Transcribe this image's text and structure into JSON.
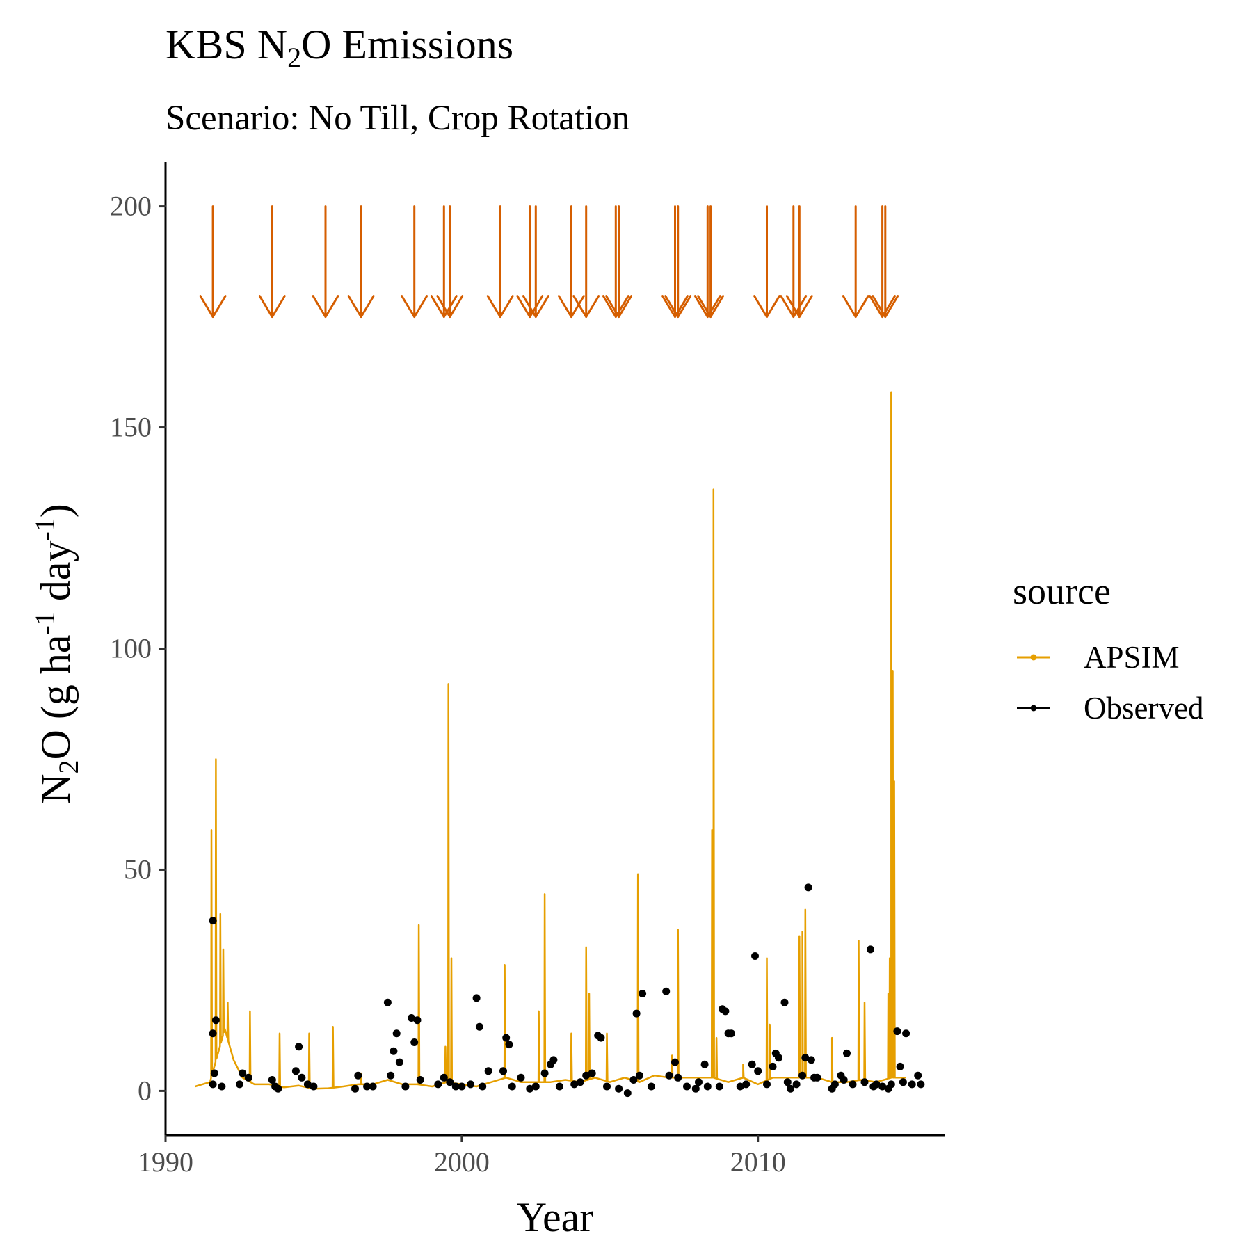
{
  "chart_data": {
    "type": "line",
    "title": {
      "prefix": "KBS N",
      "sub": "2",
      "suffix": "O Emissions"
    },
    "subtitle": "Scenario: No Till, Crop Rotation",
    "xlabel": "Year",
    "ylabel": {
      "n": "N",
      "n_sub": "2",
      "a": "O (g ha",
      "sup1": "-1",
      "b": " day",
      "sup2": "-1",
      "c": ")"
    },
    "xlim": [
      1990,
      2016.3
    ],
    "ylim": [
      -10,
      210
    ],
    "xticks": [
      1990,
      2000,
      2010
    ],
    "xtick_labels": [
      "1990",
      "2000",
      "2010"
    ],
    "yticks": [
      0,
      50,
      100,
      150,
      200
    ],
    "ytick_labels": [
      "0",
      "50",
      "100",
      "150",
      "200"
    ],
    "grid": false,
    "legend": {
      "title": "source",
      "position": "right",
      "entries": [
        {
          "name": "APSIM",
          "color": "#E69F00",
          "marker": "line-point"
        },
        {
          "name": "Observed",
          "color": "#000000",
          "marker": "line-point"
        }
      ]
    },
    "series": [
      {
        "name": "APSIM",
        "color": "#E69F00",
        "baseline": [
          [
            1991.0,
            1.0
          ],
          [
            1991.5,
            2.0
          ],
          [
            1992.0,
            14.0
          ],
          [
            1992.3,
            7.0
          ],
          [
            1992.6,
            3.0
          ],
          [
            1993.0,
            1.5
          ],
          [
            1993.5,
            1.5
          ],
          [
            1994.0,
            0.8
          ],
          [
            1994.5,
            1.2
          ],
          [
            1995.0,
            0.5
          ],
          [
            1995.5,
            0.6
          ],
          [
            1996.0,
            1.0
          ],
          [
            1996.5,
            1.5
          ],
          [
            1997.0,
            1.5
          ],
          [
            1997.5,
            2.5
          ],
          [
            1998.0,
            1.5
          ],
          [
            1998.5,
            1.5
          ],
          [
            1999.0,
            1.0
          ],
          [
            1999.5,
            2.0
          ],
          [
            2000.0,
            1.5
          ],
          [
            2000.5,
            1.0
          ],
          [
            2001.0,
            2.0
          ],
          [
            2001.5,
            3.0
          ],
          [
            2002.0,
            2.0
          ],
          [
            2002.5,
            2.0
          ],
          [
            2003.0,
            2.0
          ],
          [
            2003.5,
            2.5
          ],
          [
            2004.0,
            2.0
          ],
          [
            2004.5,
            3.0
          ],
          [
            2005.0,
            2.0
          ],
          [
            2005.5,
            3.0
          ],
          [
            2006.0,
            2.0
          ],
          [
            2006.5,
            3.5
          ],
          [
            2007.0,
            3.0
          ],
          [
            2007.5,
            3.0
          ],
          [
            2008.0,
            3.0
          ],
          [
            2008.5,
            3.0
          ],
          [
            2009.0,
            2.0
          ],
          [
            2009.5,
            3.0
          ],
          [
            2010.0,
            1.5
          ],
          [
            2010.5,
            3.0
          ],
          [
            2011.0,
            3.0
          ],
          [
            2011.5,
            3.0
          ],
          [
            2012.0,
            3.0
          ],
          [
            2012.5,
            2.0
          ],
          [
            2013.0,
            2.0
          ],
          [
            2013.5,
            2.5
          ],
          [
            2014.0,
            2.0
          ],
          [
            2014.5,
            3.0
          ],
          [
            2015.0,
            3.0
          ]
        ],
        "peaks": [
          [
            1991.55,
            59
          ],
          [
            1991.7,
            75
          ],
          [
            1991.85,
            40
          ],
          [
            1991.95,
            32
          ],
          [
            1992.1,
            20
          ],
          [
            1992.85,
            18
          ],
          [
            1993.85,
            13
          ],
          [
            1994.85,
            13
          ],
          [
            1995.65,
            14.5
          ],
          [
            1996.6,
            4
          ],
          [
            1998.55,
            37.5
          ],
          [
            1999.45,
            10
          ],
          [
            1999.55,
            92
          ],
          [
            1999.65,
            30
          ],
          [
            2001.45,
            28.5
          ],
          [
            2002.6,
            18
          ],
          [
            2002.8,
            44.5
          ],
          [
            2003.7,
            13
          ],
          [
            2004.2,
            32.5
          ],
          [
            2004.3,
            22
          ],
          [
            2004.9,
            13
          ],
          [
            2005.95,
            49
          ],
          [
            2007.1,
            8
          ],
          [
            2007.3,
            36.5
          ],
          [
            2008.45,
            59
          ],
          [
            2008.5,
            136
          ],
          [
            2008.6,
            12
          ],
          [
            2009.5,
            6
          ],
          [
            2010.3,
            30
          ],
          [
            2010.4,
            15
          ],
          [
            2011.4,
            35
          ],
          [
            2011.5,
            36
          ],
          [
            2011.6,
            41
          ],
          [
            2012.5,
            12
          ],
          [
            2013.4,
            34
          ],
          [
            2013.6,
            20
          ],
          [
            2014.4,
            22
          ],
          [
            2014.45,
            30
          ],
          [
            2014.5,
            158
          ],
          [
            2014.55,
            95
          ],
          [
            2014.6,
            70
          ]
        ]
      },
      {
        "name": "Observed",
        "color": "#000000",
        "points": [
          [
            1991.6,
            38.5
          ],
          [
            1991.6,
            13
          ],
          [
            1991.7,
            16
          ],
          [
            1991.65,
            4
          ],
          [
            1991.6,
            1.5
          ],
          [
            1991.9,
            1
          ],
          [
            1992.5,
            1.5
          ],
          [
            1992.6,
            4
          ],
          [
            1992.8,
            3
          ],
          [
            1993.6,
            2.5
          ],
          [
            1993.7,
            1
          ],
          [
            1993.8,
            0.5
          ],
          [
            1994.4,
            4.5
          ],
          [
            1994.5,
            10
          ],
          [
            1994.6,
            3
          ],
          [
            1994.8,
            1.5
          ],
          [
            1995.0,
            1
          ],
          [
            1996.4,
            0.5
          ],
          [
            1996.5,
            3.5
          ],
          [
            1996.8,
            1
          ],
          [
            1997.0,
            1
          ],
          [
            1997.5,
            20
          ],
          [
            1997.6,
            3.5
          ],
          [
            1997.7,
            9
          ],
          [
            1997.8,
            13
          ],
          [
            1997.9,
            6.5
          ],
          [
            1998.1,
            1
          ],
          [
            1998.3,
            16.5
          ],
          [
            1998.4,
            11
          ],
          [
            1998.5,
            16
          ],
          [
            1998.6,
            2.5
          ],
          [
            1999.2,
            1.5
          ],
          [
            1999.4,
            3
          ],
          [
            1999.6,
            2
          ],
          [
            1999.8,
            1
          ],
          [
            2000.0,
            1
          ],
          [
            2000.3,
            1.5
          ],
          [
            2000.5,
            21
          ],
          [
            2000.6,
            14.5
          ],
          [
            2000.7,
            1
          ],
          [
            2000.9,
            4.5
          ],
          [
            2001.4,
            4.5
          ],
          [
            2001.5,
            12
          ],
          [
            2001.6,
            10.5
          ],
          [
            2001.7,
            1
          ],
          [
            2002.0,
            3
          ],
          [
            2002.3,
            0.5
          ],
          [
            2002.5,
            1
          ],
          [
            2002.8,
            4
          ],
          [
            2003.0,
            6
          ],
          [
            2003.1,
            7
          ],
          [
            2003.3,
            1
          ],
          [
            2003.8,
            1.5
          ],
          [
            2004.0,
            2
          ],
          [
            2004.2,
            3.5
          ],
          [
            2004.4,
            4
          ],
          [
            2004.6,
            12.5
          ],
          [
            2004.7,
            12
          ],
          [
            2004.9,
            1
          ],
          [
            2005.3,
            0.5
          ],
          [
            2005.6,
            -0.5
          ],
          [
            2005.8,
            2.5
          ],
          [
            2005.9,
            17.5
          ],
          [
            2006.0,
            3.5
          ],
          [
            2006.1,
            22
          ],
          [
            2006.4,
            1
          ],
          [
            2006.9,
            22.5
          ],
          [
            2007.0,
            3.5
          ],
          [
            2007.2,
            6.5
          ],
          [
            2007.3,
            3
          ],
          [
            2007.6,
            1
          ],
          [
            2007.9,
            0.5
          ],
          [
            2008.0,
            2
          ],
          [
            2008.2,
            6
          ],
          [
            2008.3,
            1
          ],
          [
            2008.7,
            1
          ],
          [
            2008.8,
            18.5
          ],
          [
            2008.9,
            18
          ],
          [
            2009.0,
            13
          ],
          [
            2009.1,
            13
          ],
          [
            2009.4,
            1
          ],
          [
            2009.6,
            1.5
          ],
          [
            2009.8,
            6
          ],
          [
            2009.9,
            30.5
          ],
          [
            2010.0,
            4.5
          ],
          [
            2010.3,
            1.5
          ],
          [
            2010.5,
            5.5
          ],
          [
            2010.6,
            8.5
          ],
          [
            2010.7,
            7.5
          ],
          [
            2010.9,
            20
          ],
          [
            2011.0,
            2
          ],
          [
            2011.1,
            0.5
          ],
          [
            2011.3,
            1.5
          ],
          [
            2011.5,
            3.5
          ],
          [
            2011.6,
            7.5
          ],
          [
            2011.7,
            46
          ],
          [
            2011.8,
            7
          ],
          [
            2011.9,
            3
          ],
          [
            2012.0,
            3
          ],
          [
            2012.5,
            0.5
          ],
          [
            2012.6,
            1.5
          ],
          [
            2012.8,
            3.5
          ],
          [
            2012.9,
            2.5
          ],
          [
            2013.0,
            8.5
          ],
          [
            2013.2,
            1.5
          ],
          [
            2013.6,
            2
          ],
          [
            2013.8,
            32
          ],
          [
            2013.9,
            1
          ],
          [
            2014.0,
            1.5
          ],
          [
            2014.2,
            1
          ],
          [
            2014.4,
            0.5
          ],
          [
            2014.5,
            1.5
          ],
          [
            2014.7,
            13.5
          ],
          [
            2014.8,
            5.5
          ],
          [
            2014.9,
            2
          ],
          [
            2015.0,
            13
          ],
          [
            2015.2,
            1.5
          ],
          [
            2015.4,
            3.5
          ],
          [
            2015.5,
            1.5
          ]
        ]
      }
    ],
    "annotations": {
      "arrows": {
        "color": "#D55E00",
        "y_top": 200,
        "y_bottom": 175,
        "x": [
          1991.6,
          1993.6,
          1995.4,
          1996.6,
          1998.4,
          1999.4,
          1999.6,
          2001.3,
          2002.3,
          2002.5,
          2003.7,
          2004.2,
          2005.2,
          2005.3,
          2007.2,
          2007.3,
          2008.3,
          2008.4,
          2010.3,
          2011.2,
          2011.4,
          2013.3,
          2014.2,
          2014.3
        ]
      }
    }
  }
}
